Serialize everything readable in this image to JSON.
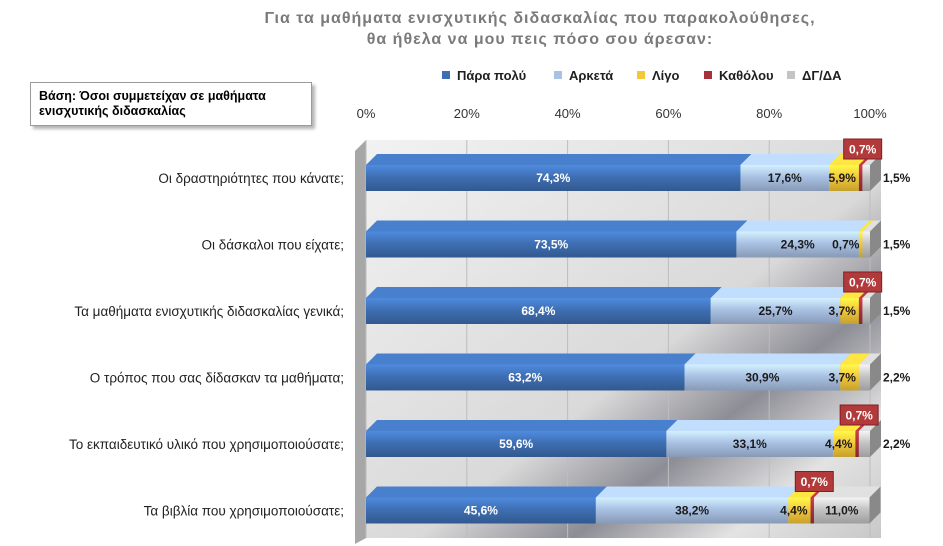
{
  "title": {
    "line1": "Για τα μαθήματα ενισχυτικής διδασκαλίας που παρακολούθησες,",
    "line2": "θα ήθελα να μου πεις πόσο σου άρεσαν:"
  },
  "basis_note": "Βάση: Όσοι συμμετείχαν σε μαθήματα ενισχυτικής διδασκαλίας",
  "colors": {
    "para_poly": "#3f6fb3",
    "arketa": "#a9c1e3",
    "ligo": "#f5c83a",
    "katholou": "#a8323a",
    "dg_da": "#c4c4c4",
    "callout_bg": "#b33a3a",
    "callout_text": "#ffffff"
  },
  "chart_data": {
    "type": "bar",
    "orientation": "horizontal",
    "stacked": true,
    "xlim": [
      0,
      100
    ],
    "x_ticks": [
      "0%",
      "20%",
      "40%",
      "60%",
      "80%",
      "100%"
    ],
    "legend_position": "top",
    "categories": [
      "Οι δραστηριότητες που κάνατε;",
      "Οι δάσκαλοι που είχατε;",
      "Τα μαθήματα ενισχυτικής διδασκαλίας γενικά;",
      "Ο τρόπος που σας δίδασκαν τα μαθήματα;",
      "Το εκπαιδευτικό υλικό που χρησιμοποιούσατε;",
      "Τα βιβλία που χρησιμοποιούσατε;"
    ],
    "series": [
      {
        "name": "Πάρα πολύ",
        "values": [
          74.3,
          73.5,
          68.4,
          63.2,
          59.6,
          45.6
        ],
        "labels": [
          "74,3%",
          "73,5%",
          "68,4%",
          "63,2%",
          "59,6%",
          "45,6%"
        ]
      },
      {
        "name": "Αρκετά",
        "values": [
          17.6,
          24.3,
          25.7,
          30.9,
          33.1,
          38.2
        ],
        "labels": [
          "17,6%",
          "24,3%",
          "25,7%",
          "30,9%",
          "33,1%",
          "38,2%"
        ]
      },
      {
        "name": "Λίγο",
        "values": [
          5.9,
          0.7,
          3.7,
          3.7,
          4.4,
          4.4
        ],
        "labels": [
          "5,9%",
          "0,7%",
          "3,7%",
          "3,7%",
          "4,4%",
          "4,4%"
        ]
      },
      {
        "name": "Καθόλου",
        "values": [
          0.7,
          0,
          0.7,
          0,
          0.7,
          0.7
        ],
        "labels": [
          "0,7%",
          "",
          "0,7%",
          "",
          "0,7%",
          "0,7%"
        ]
      },
      {
        "name": "ΔΓ/ΔΑ",
        "values": [
          1.5,
          1.5,
          1.5,
          2.2,
          2.2,
          11.0
        ],
        "labels": [
          "1,5%",
          "1,5%",
          "1,5%",
          "2,2%",
          "2,2%",
          "11,0%"
        ]
      }
    ]
  }
}
